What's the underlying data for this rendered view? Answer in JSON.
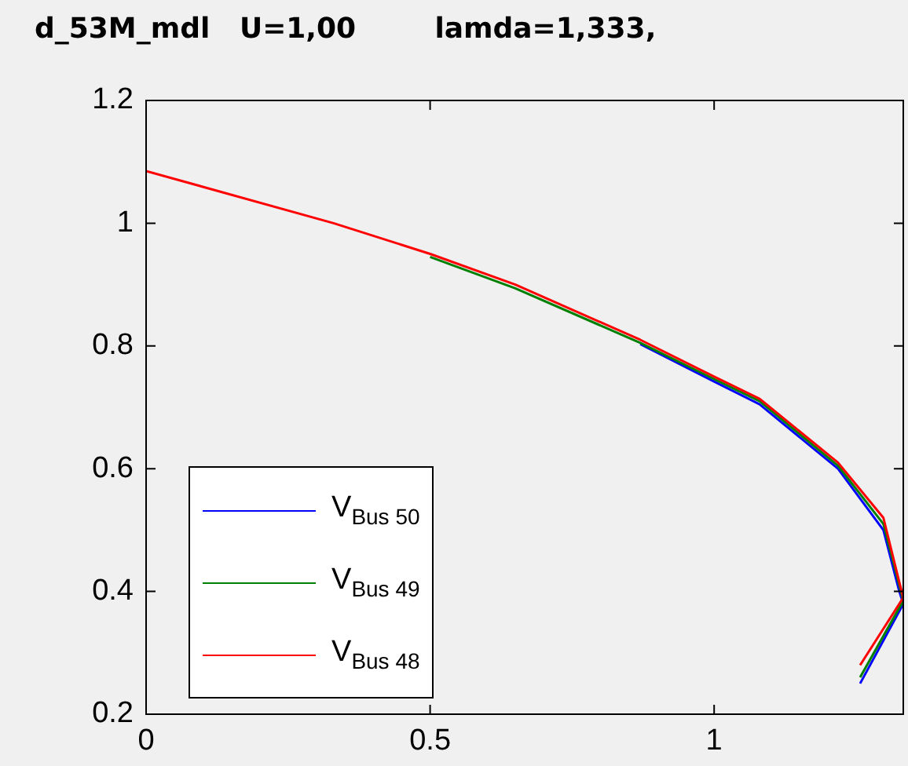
{
  "chart_data": {
    "type": "line",
    "title": "d_53M_mdl   U=1,00        lamda=1,333,",
    "series": [
      {
        "name": "V$_{Bus 50}$",
        "color": "#0000ff",
        "x": [
          0.87,
          1.0,
          1.08,
          1.218,
          1.298,
          1.326,
          1.333,
          1.257
        ],
        "values": [
          0.803,
          0.742,
          0.705,
          0.6,
          0.5,
          0.4,
          0.38,
          0.25
        ]
      },
      {
        "name": "V$_{Bus 49}$",
        "color": "#008000",
        "x": [
          0.5,
          0.65,
          0.87,
          1.0,
          1.08,
          1.218,
          1.298,
          1.326,
          1.333,
          1.257
        ],
        "values": [
          0.945,
          0.894,
          0.805,
          0.746,
          0.71,
          0.605,
          0.51,
          0.41,
          0.385,
          0.26
        ]
      },
      {
        "name": "V$_{Bus 48}$",
        "color": "#ff0000",
        "x": [
          0,
          0.33,
          0.5,
          0.65,
          0.87,
          1.0,
          1.08,
          1.218,
          1.298,
          1.326,
          1.333,
          1.257
        ],
        "values": [
          1.085,
          1.0,
          0.95,
          0.9,
          0.81,
          0.75,
          0.714,
          0.61,
          0.52,
          0.415,
          0.39,
          0.28
        ]
      }
    ],
    "xlim": [
      0,
      1.333
    ],
    "xticks": [
      0,
      0.5,
      1
    ],
    "ylim": [
      0.2,
      1.2
    ],
    "yticks": [
      0.2,
      0.4,
      0.6,
      0.8,
      1,
      1.2
    ],
    "legend": "bottom left",
    "marker": "none",
    "line_style": "solid",
    "grid": false
  }
}
